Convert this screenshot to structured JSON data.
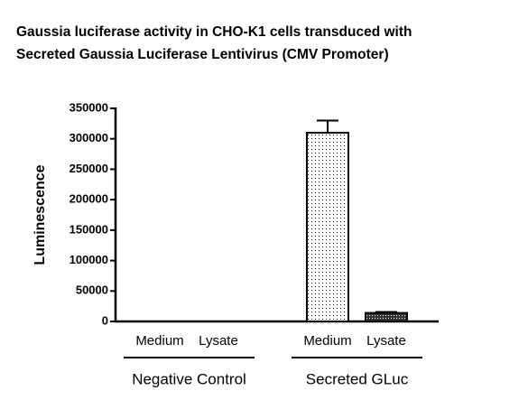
{
  "chart_data": {
    "type": "bar",
    "title": [
      "Gaussia luciferase activity in CHO-K1 cells transduced with",
      "Secreted Gaussia Luciferase Lentivirus (CMV Promoter)"
    ],
    "y_label": "Luminescence",
    "categories": [
      "Medium",
      "Lysate",
      "Medium",
      "Lysate"
    ],
    "group_labels": [
      "Negative Control",
      "Secreted GLuc"
    ],
    "values": [
      0,
      0,
      310000,
      14000
    ],
    "errors": [
      null,
      null,
      20000,
      1500
    ],
    "color": "#000000",
    "ylim": [
      0,
      350000
    ],
    "yticks": [
      0,
      50000,
      100000,
      150000,
      200000,
      250000,
      300000,
      350000
    ]
  }
}
